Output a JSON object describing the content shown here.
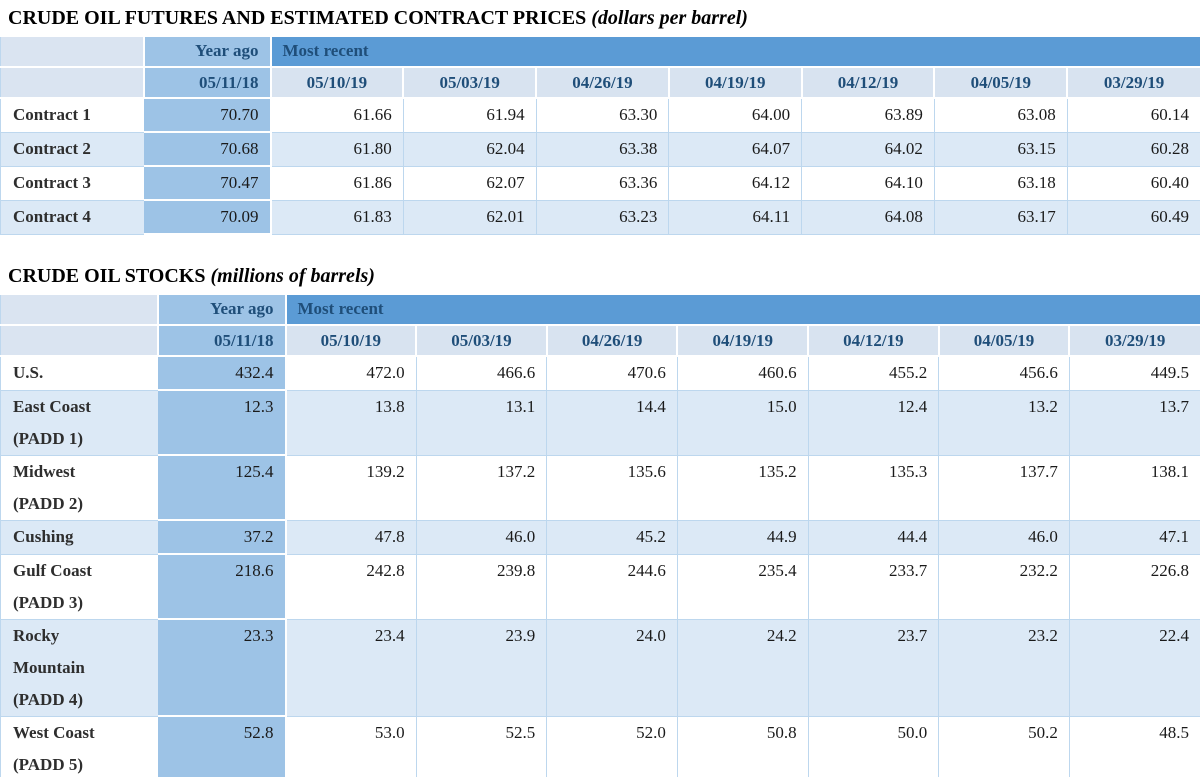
{
  "palette": {
    "accent_header": "#5B9BD5",
    "year_ago_band": "#9DC3E6",
    "date_row_bg": "#D8E3F0",
    "corner_bg": "#DAE4F1",
    "shaded_row_bg": "#DCE9F6",
    "grid_line": "#BDD7EE",
    "header_text": "#1F4E79"
  },
  "tables": [
    {
      "id": "futures",
      "title": "CRUDE OIL FUTURES AND ESTIMATED CONTRACT PRICES",
      "title_note": "(dollars per barrel)",
      "col_groups": {
        "year_ago": "Year ago",
        "most_recent": "Most recent"
      },
      "year_ago_date": "05/11/18",
      "recent_dates": [
        "05/10/19",
        "05/03/19",
        "04/26/19",
        "04/19/19",
        "04/12/19",
        "04/05/19",
        "03/29/19"
      ],
      "rows": [
        {
          "label": [
            "Contract 1"
          ],
          "year_ago": "70.70",
          "values": [
            "61.66",
            "61.94",
            "63.30",
            "64.00",
            "63.89",
            "63.08",
            "60.14"
          ],
          "shaded": false
        },
        {
          "label": [
            "Contract 2"
          ],
          "year_ago": "70.68",
          "values": [
            "61.80",
            "62.04",
            "63.38",
            "64.07",
            "64.02",
            "63.15",
            "60.28"
          ],
          "shaded": true
        },
        {
          "label": [
            "Contract 3"
          ],
          "year_ago": "70.47",
          "values": [
            "61.86",
            "62.07",
            "63.36",
            "64.12",
            "64.10",
            "63.18",
            "60.40"
          ],
          "shaded": false
        },
        {
          "label": [
            "Contract 4"
          ],
          "year_ago": "70.09",
          "values": [
            "61.83",
            "62.01",
            "63.23",
            "64.11",
            "64.08",
            "63.17",
            "60.49"
          ],
          "shaded": true
        }
      ],
      "truncated_row": false
    },
    {
      "id": "stocks",
      "title": "CRUDE OIL STOCKS",
      "title_note": "(millions of barrels)",
      "col_groups": {
        "year_ago": "Year ago",
        "most_recent": "Most recent"
      },
      "year_ago_date": "05/11/18",
      "recent_dates": [
        "05/10/19",
        "05/03/19",
        "04/26/19",
        "04/19/19",
        "04/12/19",
        "04/05/19",
        "03/29/19"
      ],
      "rows": [
        {
          "label": [
            "U.S."
          ],
          "year_ago": "432.4",
          "values": [
            "472.0",
            "466.6",
            "470.6",
            "460.6",
            "455.2",
            "456.6",
            "449.5"
          ],
          "shaded": false
        },
        {
          "label": [
            "East Coast",
            "(PADD 1)"
          ],
          "year_ago": "12.3",
          "values": [
            "13.8",
            "13.1",
            "14.4",
            "15.0",
            "12.4",
            "13.2",
            "13.7"
          ],
          "shaded": true
        },
        {
          "label": [
            "Midwest",
            "(PADD 2)"
          ],
          "year_ago": "125.4",
          "values": [
            "139.2",
            "137.2",
            "135.6",
            "135.2",
            "135.3",
            "137.7",
            "138.1"
          ],
          "shaded": false
        },
        {
          "label": [
            "Cushing"
          ],
          "year_ago": "37.2",
          "values": [
            "47.8",
            "46.0",
            "45.2",
            "44.9",
            "44.4",
            "46.0",
            "47.1"
          ],
          "shaded": true
        },
        {
          "label": [
            "Gulf Coast",
            "(PADD 3)"
          ],
          "year_ago": "218.6",
          "values": [
            "242.8",
            "239.8",
            "244.6",
            "235.4",
            "233.7",
            "232.2",
            "226.8"
          ],
          "shaded": false
        },
        {
          "label": [
            "Rocky",
            "Mountain",
            "(PADD 4)"
          ],
          "year_ago": "23.3",
          "values": [
            "23.4",
            "23.9",
            "24.0",
            "24.2",
            "23.7",
            "23.2",
            "22.4"
          ],
          "shaded": true
        },
        {
          "label": [
            "West Coast",
            "(PADD 5)"
          ],
          "year_ago": "52.8",
          "values": [
            "53.0",
            "52.5",
            "52.0",
            "50.8",
            "50.0",
            "50.2",
            "48.5"
          ],
          "shaded": false
        }
      ],
      "truncated_row": true
    }
  ]
}
